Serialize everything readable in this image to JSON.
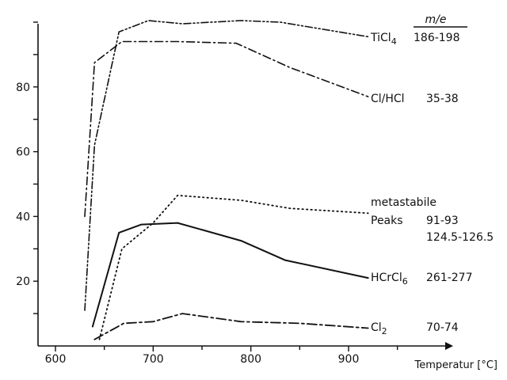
{
  "chart_data": {
    "type": "line",
    "xlabel": "Temperatur [°C]",
    "ylabel": "",
    "xlim": [
      580,
      1000
    ],
    "ylim": [
      0,
      100
    ],
    "xticks": [
      "600",
      "700",
      "800",
      "900"
    ],
    "yticks": [
      "20",
      "40",
      "60",
      "80"
    ],
    "legend_header": "m/e",
    "series": [
      {
        "name": "TiCl4",
        "label_main": "TiCl",
        "label_sub": "4",
        "mass_range": "186-198",
        "style": "dashdotdot",
        "x": [
          630,
          640,
          665,
          695,
          730,
          790,
          830,
          920
        ],
        "y": [
          11,
          62,
          97,
          100.5,
          99.5,
          100.5,
          100,
          95.5
        ]
      },
      {
        "name": "Cl/HCl",
        "label_main": "Cl/HCl",
        "label_sub": "",
        "mass_range": "35-38",
        "style": "dashdot",
        "x": [
          630,
          640,
          668,
          725,
          785,
          840,
          920
        ],
        "y": [
          40,
          87.5,
          94,
          94,
          93.5,
          86,
          77
        ]
      },
      {
        "name": "metastabile Peaks",
        "label_main": "metastabile",
        "label_line2": "Peaks",
        "label_sub": "",
        "mass_range": "91-93",
        "mass_range2": "124.5-126.5",
        "style": "dotted",
        "x": [
          645,
          668,
          700,
          725,
          790,
          840,
          920
        ],
        "y": [
          2,
          30,
          38,
          46.5,
          45,
          42.5,
          41
        ]
      },
      {
        "name": "HCrCl6",
        "label_main": "HCrCl",
        "label_sub": "6",
        "mass_range": "261-277",
        "style": "solid",
        "x": [
          638,
          665,
          688,
          725,
          790,
          835,
          920
        ],
        "y": [
          6,
          35,
          37.5,
          38,
          32.5,
          26.5,
          21
        ]
      },
      {
        "name": "Cl2",
        "label_main": "Cl",
        "label_sub": "2",
        "mass_range": "70-74",
        "style": "dashlong",
        "x": [
          640,
          670,
          700,
          730,
          790,
          850,
          920
        ],
        "y": [
          2,
          7,
          7.5,
          10,
          7.5,
          7,
          5.5
        ]
      }
    ]
  }
}
